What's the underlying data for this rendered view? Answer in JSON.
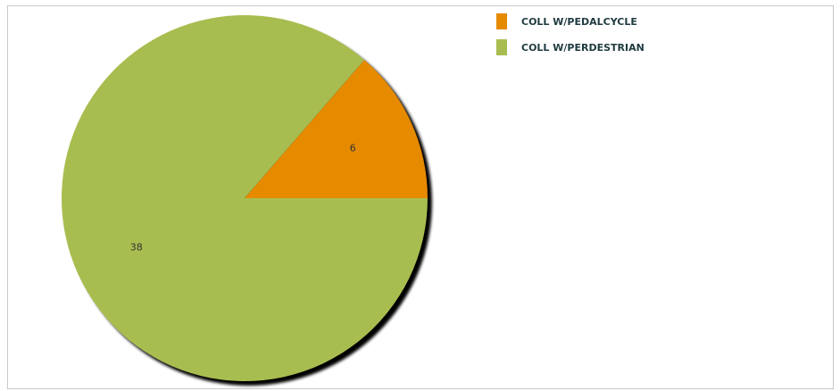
{
  "chart_data": {
    "type": "pie",
    "title": "",
    "slices": [
      {
        "label": "COLL W/PEDALCYCLE",
        "value": 6,
        "color": "#e68a00"
      },
      {
        "label": "COLL W/PERDESTRIAN",
        "value": 38,
        "color": "#a8bd50"
      }
    ],
    "start_angle_deg": 0,
    "direction": "counterclockwise",
    "legend_position": "top-right",
    "shadow": true
  }
}
